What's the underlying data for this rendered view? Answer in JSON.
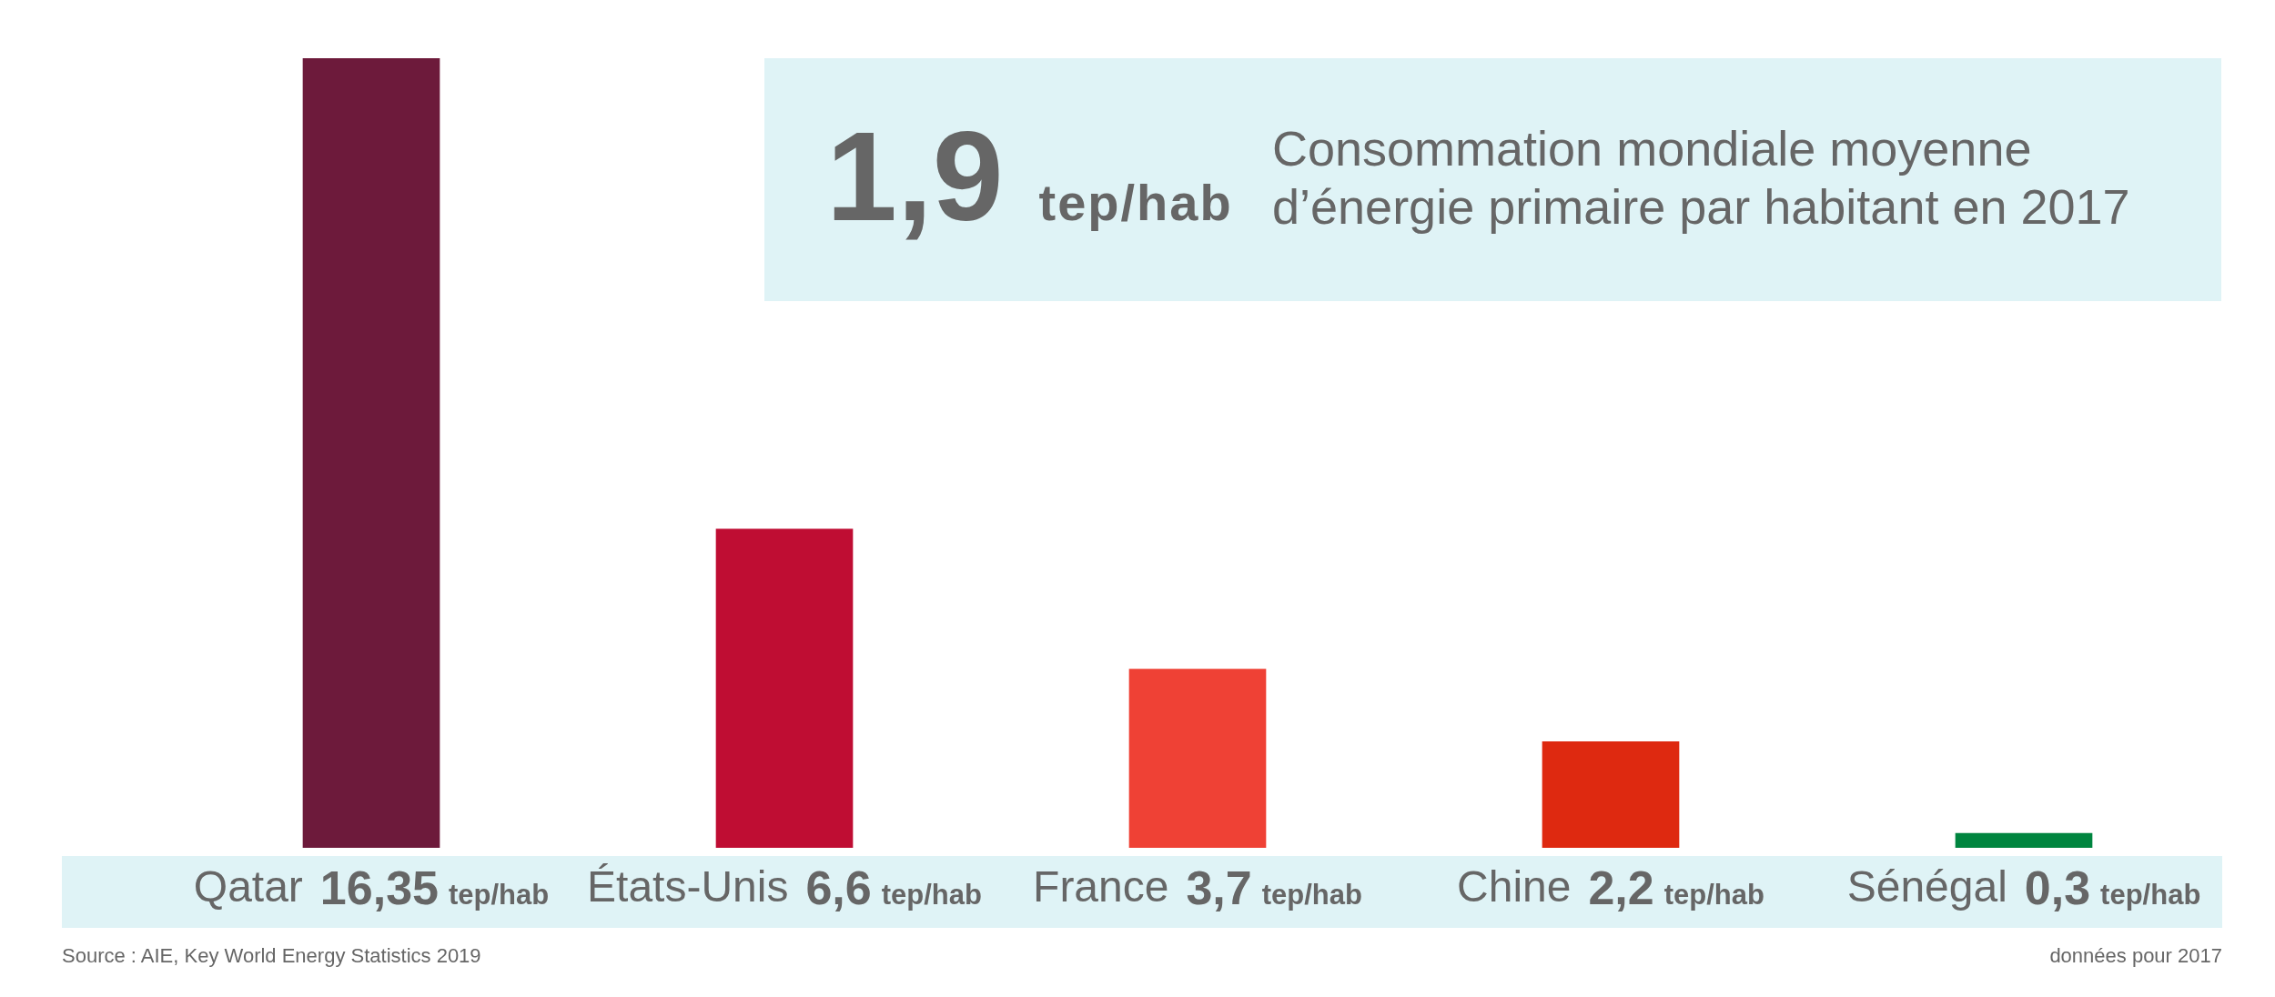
{
  "chart_data": {
    "type": "bar",
    "categories": [
      "Qatar",
      "États-Unis",
      "France",
      "Chine",
      "Sénégal"
    ],
    "values": [
      16.35,
      6.6,
      3.7,
      2.2,
      0.3
    ],
    "colors": [
      "#6d1a3b",
      "#bf0d33",
      "#ef4135",
      "#de2910",
      "#00853f"
    ],
    "value_labels": [
      "16,35 tep/hab",
      "6,6 tep/hab",
      "3,7 tep/hab",
      "2,2 tep/hab",
      "0,3 tep/hab"
    ],
    "ylim": [
      0,
      16.35
    ],
    "tick_labels": "x",
    "annotations": [
      "1,9 tep/hab",
      "Consommation mondiale moyenne d’énergie primaire par habitant en 2017",
      "Source : AIE, Key World Energy Statistics 2019",
      "données pour 2017"
    ]
  }
}
